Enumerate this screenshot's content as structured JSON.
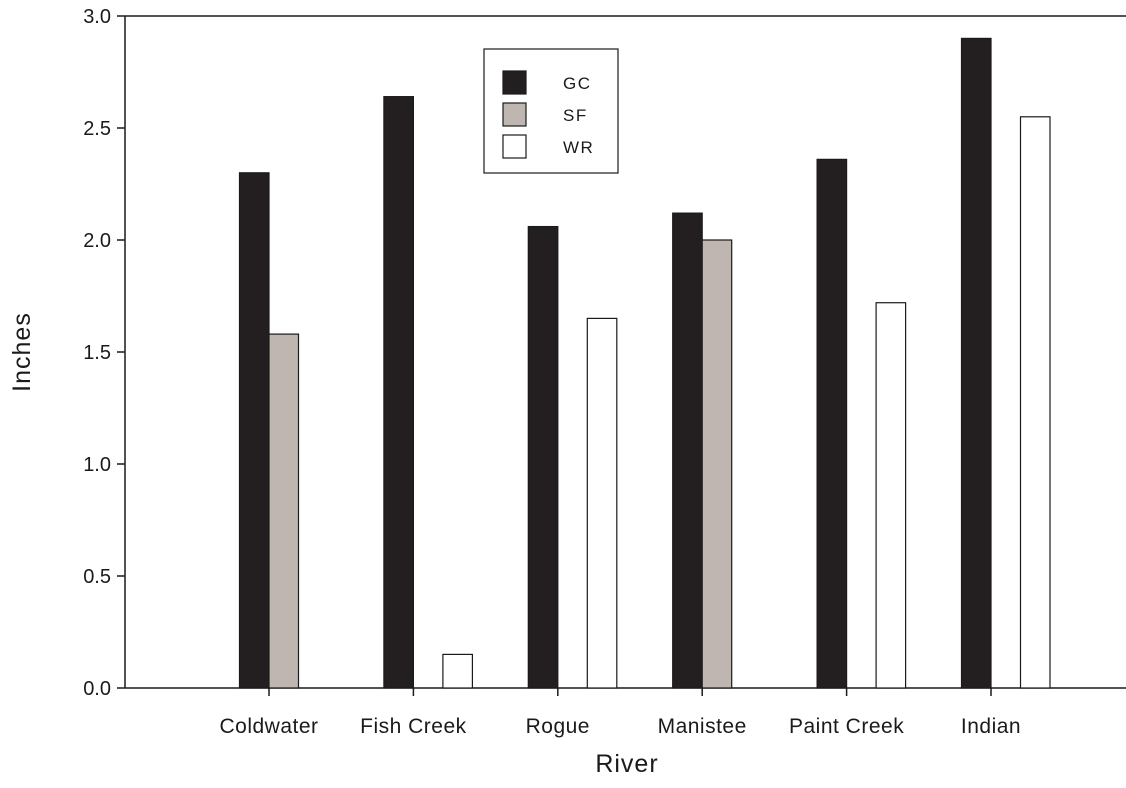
{
  "chart_data": {
    "type": "bar",
    "xlabel": "River",
    "ylabel": "Inches",
    "ylim": [
      0,
      3.0
    ],
    "yticks": [
      "0.0",
      "0.5",
      "1.0",
      "1.5",
      "2.0",
      "2.5",
      "3.0"
    ],
    "ytick_values": [
      0,
      0.5,
      1.0,
      1.5,
      2.0,
      2.5,
      3.0
    ],
    "grid": false,
    "legend_position": "top-center",
    "categories": [
      "Coldwater",
      "Fish Creek",
      "Rogue",
      "Manistee",
      "Paint Creek",
      "Indian"
    ],
    "series": [
      {
        "name": "GC",
        "color": "#231f20",
        "values": [
          2.3,
          2.64,
          2.06,
          2.12,
          2.36,
          2.9
        ]
      },
      {
        "name": "SF",
        "color": "#bfb6b2",
        "values": [
          1.58,
          null,
          null,
          2.0,
          null,
          null
        ]
      },
      {
        "name": "WR",
        "color": "#ffffff",
        "values": [
          null,
          0.15,
          1.65,
          null,
          1.72,
          2.55
        ]
      }
    ]
  }
}
